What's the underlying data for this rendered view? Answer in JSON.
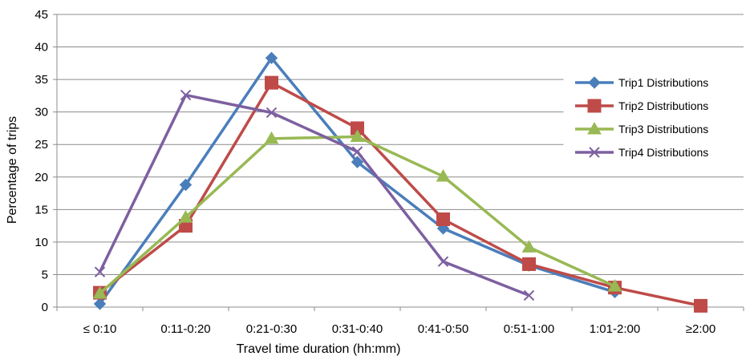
{
  "chart_data": {
    "type": "line",
    "title": "",
    "xlabel": "Travel time duration (hh:mm)",
    "ylabel": "Percentage of trips",
    "ylim": [
      0,
      45
    ],
    "yticks": [
      0,
      5,
      10,
      15,
      20,
      25,
      30,
      35,
      40,
      45
    ],
    "grid": "horizontal",
    "legend_position": "right",
    "categories": [
      "≤ 0:10",
      "0:11-0:20",
      "0:21-0:30",
      "0:31-0:40",
      "0:41-0:50",
      "0:51-1:00",
      "1:01-2:00",
      "≥2:00"
    ],
    "series": [
      {
        "name": "Trip1 Distributions",
        "color": "#4A7EBB",
        "marker": "diamond",
        "values": [
          0.5,
          18.8,
          38.3,
          22.3,
          12.1,
          6.4,
          2.3,
          null
        ]
      },
      {
        "name": "Trip2 Distributions",
        "color": "#BE4B48",
        "marker": "square",
        "values": [
          2.2,
          12.5,
          34.5,
          27.5,
          13.5,
          6.6,
          3.0,
          0.2
        ]
      },
      {
        "name": "Trip3 Distributions",
        "color": "#98B954",
        "marker": "triangle",
        "values": [
          2.1,
          13.8,
          25.9,
          26.2,
          20.1,
          9.2,
          3.2,
          null
        ]
      },
      {
        "name": "Trip4 Distributions",
        "color": "#7D60A0",
        "marker": "x",
        "values": [
          5.4,
          32.6,
          29.9,
          23.9,
          7.0,
          1.8,
          null,
          null
        ]
      }
    ]
  }
}
